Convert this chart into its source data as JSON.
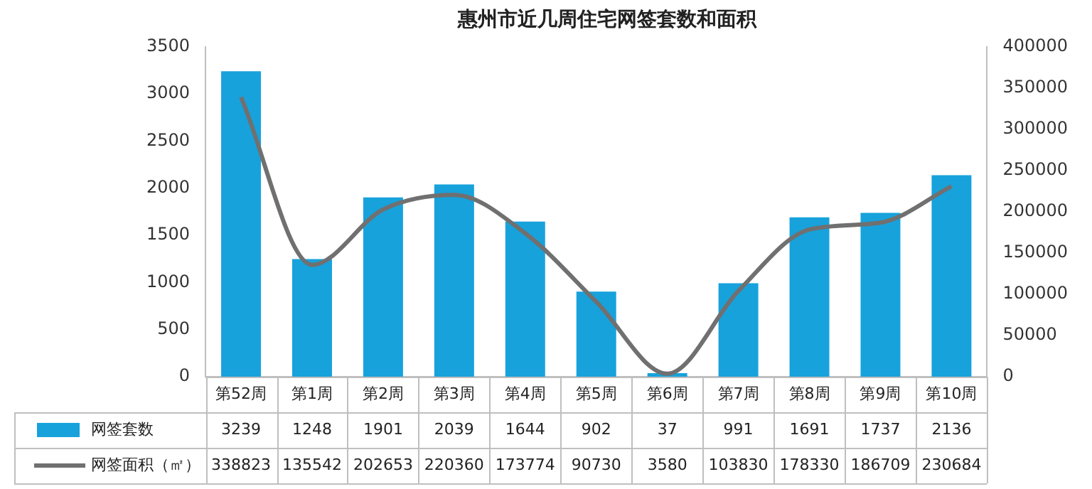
{
  "chart_data": {
    "type": "bar",
    "title": "惠州市近几周住宅网签套数和面积",
    "categories": [
      "第52周",
      "第1周",
      "第2周",
      "第3周",
      "第4周",
      "第5周",
      "第6周",
      "第7周",
      "第8周",
      "第9周",
      "第10周"
    ],
    "series": [
      {
        "name": "网签套数",
        "color": "#17a2dc",
        "values": [
          3239,
          1248,
          1901,
          2039,
          1644,
          902,
          37,
          991,
          1691,
          1737,
          2136
        ]
      },
      {
        "name": "网签面积（㎡）",
        "type": "line",
        "axis": "y2",
        "color": "#707070",
        "values": [
          338823,
          135542,
          202653,
          220360,
          173774,
          90730,
          3580,
          103830,
          178330,
          186709,
          230684
        ]
      }
    ],
    "ylim": [
      0,
      3500
    ],
    "yticks": [
      0,
      500,
      1000,
      1500,
      2000,
      2500,
      3000,
      3500
    ],
    "y2lim": [
      0,
      400000
    ],
    "y2ticks": [
      0,
      50000,
      100000,
      150000,
      200000,
      250000,
      300000,
      350000,
      400000
    ],
    "grid": false,
    "legend": "bottom",
    "data_labels": true,
    "marker": "none"
  }
}
